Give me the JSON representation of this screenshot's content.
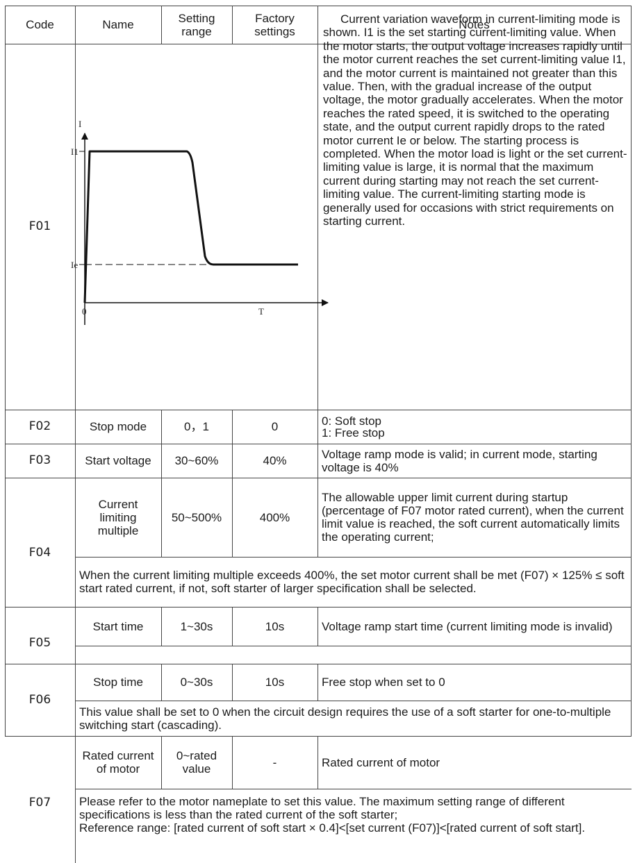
{
  "header": {
    "code": "Code",
    "name": "Name",
    "setting_range": "Setting\nrange",
    "factory_settings": "Factory\nsettings",
    "notes": "Notes"
  },
  "f01": {
    "code": "F01",
    "notes": "Current variation waveform in current-limiting mode is shown. I1 is the set starting current-limiting value. When the motor starts, the output voltage increases rapidly until the motor current reaches the set current-limiting value I1, and the motor current is maintained not greater than this value. Then, with the gradual increase of the output voltage, the motor gradually accelerates. When the motor reaches the rated speed, it is switched to the operating state, and the output current rapidly drops to the rated motor current Ie or below. The starting process is completed. When the motor load is light or the set current-limiting value is large, it is normal that the maximum current during starting may not reach the set current-limiting value. The current-limiting starting mode is generally used for occasions with strict requirements on starting current.",
    "diagram": {
      "y_axis": "I",
      "i1": "I1",
      "ie": "Ie",
      "origin": "0",
      "x_axis": "T"
    }
  },
  "f02": {
    "code": "F02",
    "name": "Stop mode",
    "range": "0，1",
    "factory": "0",
    "notes": "0: Soft stop\n1: Free stop"
  },
  "f03": {
    "code": "F03",
    "name": "Start voltage",
    "range": "30~60%",
    "factory": "40%",
    "notes": "Voltage ramp mode is valid; in current mode, starting voltage is 40%"
  },
  "f04": {
    "code": "F04",
    "name": "Current\nlimiting\nmultiple",
    "range": "50~500%",
    "factory": "400%",
    "notes": "The allowable upper limit current during startup (percentage of F07 motor rated current), when the current limit value is reached, the soft current automatically limits the operating current;",
    "remark": "When the current limiting multiple exceeds 400%, the set motor current shall be met (F07) × 125% ≤ soft start rated current, if not, soft starter of larger specification shall be selected."
  },
  "f05": {
    "code": "F05",
    "name": "Start time",
    "range": "1~30s",
    "factory": "10s",
    "notes": "Voltage ramp start time (current limiting mode is invalid)"
  },
  "f06": {
    "code": "F06",
    "name": "Stop time",
    "range": "0~30s",
    "factory": "10s",
    "notes": "Free stop when set to 0",
    "remark": "This value shall be set to 0 when the circuit design requires the use of a soft starter for one-to-multiple switching start (cascading)."
  },
  "f07": {
    "code": "F07",
    "name": "Rated current\nof motor",
    "range": "0~rated\nvalue",
    "factory": "-",
    "notes": "Rated current of motor",
    "remark": "Please refer to the motor nameplate to set this value. The maximum setting range of different specifications is less than the rated current of the soft starter;\nReference range: [rated current of soft start × 0.4]<[set current (F07)]<[rated current of soft start]."
  }
}
